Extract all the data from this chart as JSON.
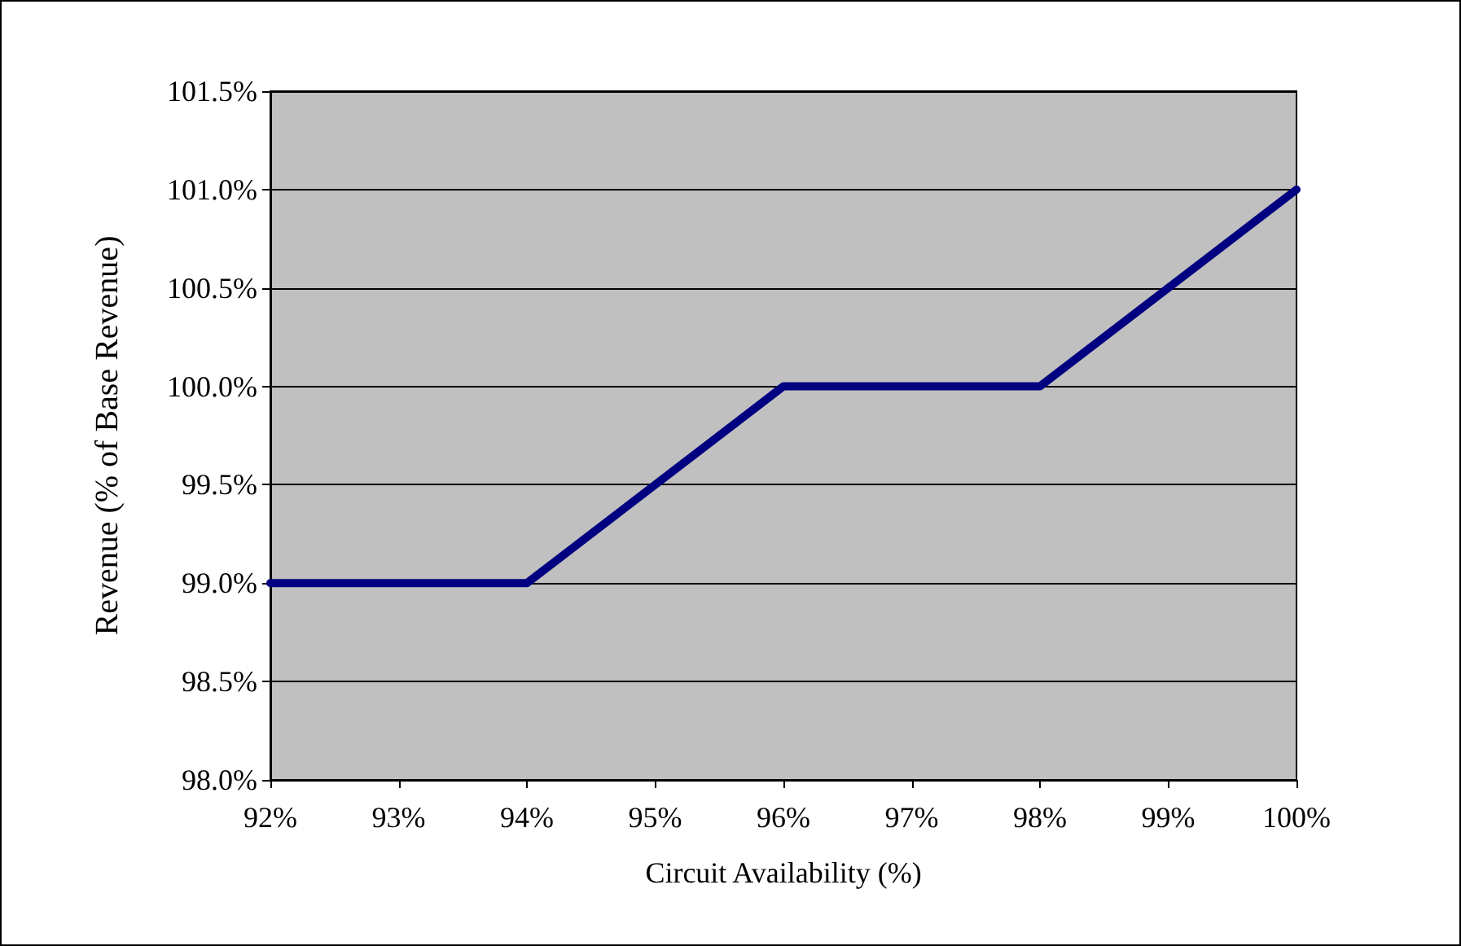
{
  "chart_data": {
    "type": "line",
    "xlabel": "Circuit Availability (%)",
    "ylabel": "Revenue (% of Base Revenue)",
    "x": [
      92,
      94,
      96,
      98,
      100
    ],
    "series": [
      {
        "color": "#000080",
        "values": [
          99,
          99,
          100,
          100,
          101
        ]
      }
    ],
    "xlim": [
      92,
      100
    ],
    "xticks": [
      {
        "value": 92,
        "label": "92%"
      },
      {
        "value": 93,
        "label": "93%"
      },
      {
        "value": 94,
        "label": "94%"
      },
      {
        "value": 95,
        "label": "95%"
      },
      {
        "value": 96,
        "label": "96%"
      },
      {
        "value": 97,
        "label": "97%"
      },
      {
        "value": 98,
        "label": "98%"
      },
      {
        "value": 99,
        "label": "99%"
      },
      {
        "value": 100,
        "label": "100%"
      }
    ],
    "ylim": [
      98,
      101.5
    ],
    "yticks": [
      {
        "value": 98,
        "label": "98.0%"
      },
      {
        "value": 98.5,
        "label": "98.5%"
      },
      {
        "value": 99,
        "label": "99.0%"
      },
      {
        "value": 99.5,
        "label": "99.5%"
      },
      {
        "value": 100,
        "label": "100.0%"
      },
      {
        "value": 100.5,
        "label": "100.5%"
      },
      {
        "value": 101,
        "label": "101.0%"
      },
      {
        "value": 101.5,
        "label": "101.5%"
      }
    ],
    "grid": "y",
    "marker": "none",
    "line_style": "solid"
  }
}
